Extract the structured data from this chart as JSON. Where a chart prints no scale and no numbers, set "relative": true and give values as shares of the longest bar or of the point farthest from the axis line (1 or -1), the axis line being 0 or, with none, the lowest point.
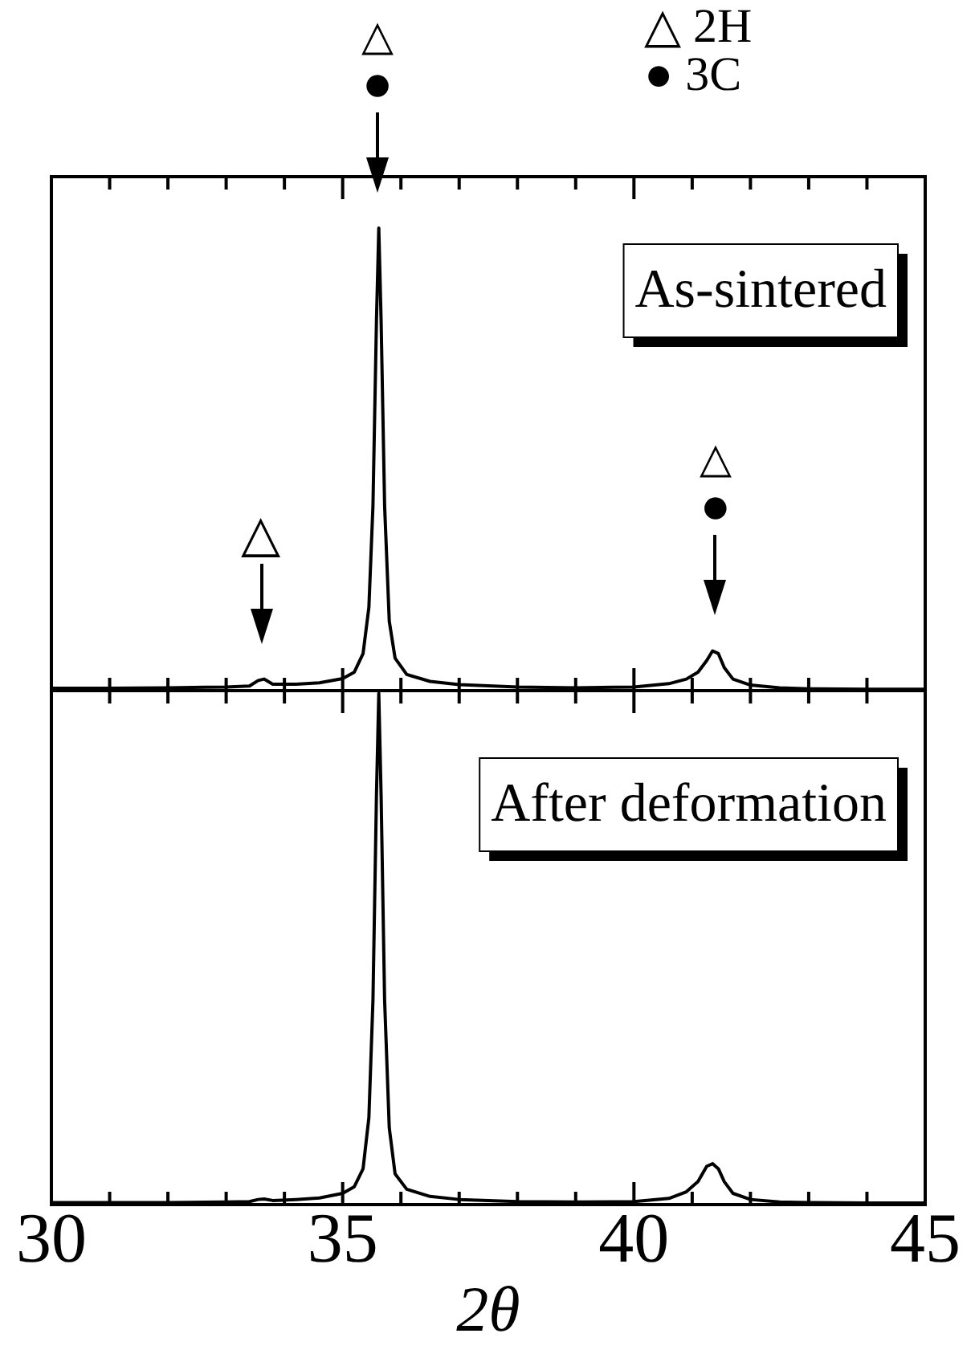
{
  "chart_data": [
    {
      "type": "line",
      "title": "As-sintered",
      "relative": true,
      "tick_labels": false,
      "xlim": [
        30,
        45
      ],
      "xticks": [
        30,
        {
          "value": 31,
          "label": null
        },
        {
          "value": 32,
          "label": null
        },
        {
          "value": 33,
          "label": null
        },
        {
          "value": 34,
          "label": null
        },
        35,
        {
          "value": 36,
          "label": null
        },
        {
          "value": 37,
          "label": null
        },
        {
          "value": 38,
          "label": null
        },
        {
          "value": 39,
          "label": null
        },
        40,
        {
          "value": 41,
          "label": null
        },
        {
          "value": 42,
          "label": null
        },
        {
          "value": 43,
          "label": null
        },
        {
          "value": 44,
          "label": null
        },
        45
      ],
      "color": "#000000",
      "marker": "none",
      "line_style": "solid",
      "grid": false,
      "legend": false,
      "x": [
        30,
        31,
        32,
        33,
        33.4,
        33.55,
        33.65,
        33.8,
        34.2,
        34.6,
        35.0,
        35.2,
        35.35,
        35.45,
        35.52,
        35.58,
        35.62,
        35.66,
        35.72,
        35.8,
        35.9,
        36.1,
        36.5,
        37,
        38,
        39,
        40,
        40.6,
        40.9,
        41.1,
        41.25,
        41.35,
        41.45,
        41.55,
        41.7,
        42,
        42.5,
        43,
        44,
        45
      ],
      "values": [
        0.005,
        0.005,
        0.006,
        0.008,
        0.01,
        0.022,
        0.025,
        0.014,
        0.014,
        0.017,
        0.026,
        0.04,
        0.08,
        0.18,
        0.4,
        0.8,
        1,
        0.8,
        0.4,
        0.15,
        0.07,
        0.035,
        0.02,
        0.013,
        0.008,
        0.006,
        0.008,
        0.015,
        0.025,
        0.04,
        0.065,
        0.086,
        0.08,
        0.05,
        0.025,
        0.012,
        0.006,
        0.004,
        0.003,
        0.003
      ],
      "annotations": [
        {
          "text": "△",
          "x": 33.6,
          "y": 0.025
        },
        {
          "text": "△\n●",
          "x": 35.6,
          "y": 1
        },
        {
          "text": "△\n●",
          "x": 41.4,
          "y": 0.086
        },
        "△ 2H",
        "● 3C"
      ]
    },
    {
      "type": "line",
      "title": "After deformation",
      "relative": true,
      "tick_labels": "x",
      "xlim": [
        30,
        45
      ],
      "xticks": [
        30,
        {
          "value": 31,
          "label": null
        },
        {
          "value": 32,
          "label": null
        },
        {
          "value": 33,
          "label": null
        },
        {
          "value": 34,
          "label": null
        },
        35,
        {
          "value": 36,
          "label": null
        },
        {
          "value": 37,
          "label": null
        },
        {
          "value": 38,
          "label": null
        },
        {
          "value": 39,
          "label": null
        },
        40,
        {
          "value": 41,
          "label": null
        },
        {
          "value": 42,
          "label": null
        },
        {
          "value": 43,
          "label": null
        },
        {
          "value": 44,
          "label": null
        },
        45
      ],
      "xlabel": "2θ",
      "color": "#000000",
      "marker": "none",
      "line_style": "solid",
      "grid": false,
      "legend": false,
      "x": [
        30,
        31,
        32,
        33,
        33.4,
        33.55,
        33.65,
        33.8,
        34.2,
        34.6,
        35.0,
        35.2,
        35.35,
        35.45,
        35.52,
        35.58,
        35.62,
        35.66,
        35.72,
        35.8,
        35.9,
        36.1,
        36.5,
        37,
        38,
        39,
        40,
        40.6,
        40.9,
        41.1,
        41.25,
        41.35,
        41.45,
        41.55,
        41.7,
        42,
        42.5,
        43,
        44,
        45
      ],
      "values": [
        0.004,
        0.004,
        0.004,
        0.005,
        0.006,
        0.01,
        0.011,
        0.008,
        0.01,
        0.013,
        0.022,
        0.035,
        0.07,
        0.17,
        0.4,
        0.8,
        1,
        0.8,
        0.4,
        0.15,
        0.06,
        0.03,
        0.016,
        0.01,
        0.006,
        0.005,
        0.006,
        0.012,
        0.025,
        0.045,
        0.075,
        0.08,
        0.07,
        0.045,
        0.022,
        0.01,
        0.005,
        0.004,
        0.003,
        0.003
      ]
    }
  ]
}
